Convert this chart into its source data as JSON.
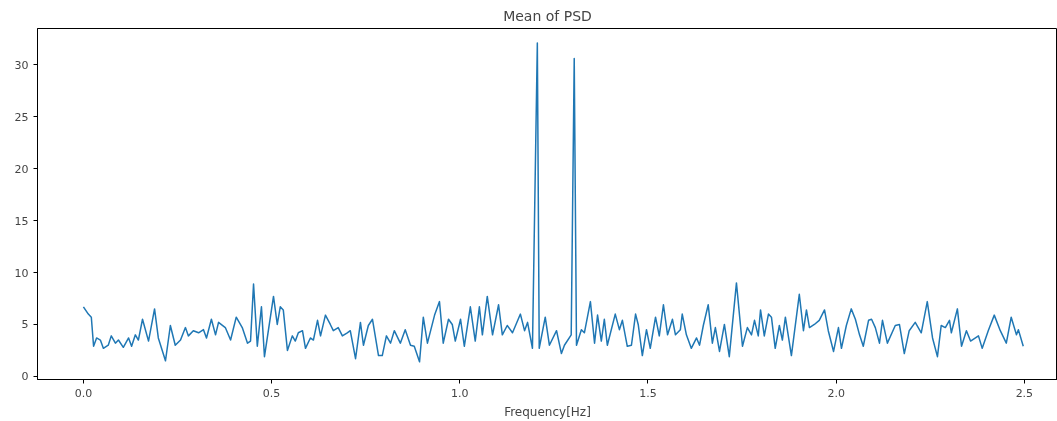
{
  "chart_data": {
    "type": "line",
    "title": "Mean of PSD",
    "xlabel": "Frequency[Hz]",
    "x": [
      0.0,
      0.013,
      0.021,
      0.027,
      0.035,
      0.045,
      0.053,
      0.066,
      0.074,
      0.085,
      0.093,
      0.106,
      0.12,
      0.128,
      0.138,
      0.146,
      0.157,
      0.173,
      0.189,
      0.199,
      0.218,
      0.231,
      0.244,
      0.258,
      0.271,
      0.279,
      0.292,
      0.306,
      0.319,
      0.327,
      0.34,
      0.351,
      0.359,
      0.377,
      0.391,
      0.406,
      0.422,
      0.436,
      0.444,
      0.452,
      0.462,
      0.473,
      0.481,
      0.505,
      0.515,
      0.523,
      0.531,
      0.542,
      0.555,
      0.563,
      0.571,
      0.582,
      0.59,
      0.603,
      0.611,
      0.622,
      0.63,
      0.643,
      0.656,
      0.664,
      0.677,
      0.688,
      0.701,
      0.709,
      0.723,
      0.736,
      0.744,
      0.757,
      0.768,
      0.784,
      0.794,
      0.805,
      0.816,
      0.826,
      0.842,
      0.855,
      0.869,
      0.879,
      0.893,
      0.903,
      0.914,
      0.933,
      0.946,
      0.956,
      0.97,
      0.98,
      0.988,
      1.002,
      1.012,
      1.028,
      1.041,
      1.052,
      1.06,
      1.073,
      1.087,
      1.103,
      1.113,
      1.126,
      1.14,
      1.161,
      1.172,
      1.18,
      1.193,
      1.206,
      1.211,
      1.227,
      1.238,
      1.257,
      1.27,
      1.278,
      1.296,
      1.304,
      1.31,
      1.323,
      1.331,
      1.347,
      1.358,
      1.366,
      1.376,
      1.384,
      1.392,
      1.413,
      1.424,
      1.432,
      1.445,
      1.456,
      1.467,
      1.474,
      1.485,
      1.496,
      1.506,
      1.52,
      1.53,
      1.541,
      1.552,
      1.565,
      1.573,
      1.586,
      1.591,
      1.602,
      1.615,
      1.629,
      1.637,
      1.647,
      1.66,
      1.671,
      1.679,
      1.69,
      1.703,
      1.716,
      1.735,
      1.751,
      1.764,
      1.775,
      1.783,
      1.793,
      1.799,
      1.809,
      1.82,
      1.828,
      1.838,
      1.849,
      1.857,
      1.865,
      1.881,
      1.902,
      1.913,
      1.921,
      1.929,
      1.942,
      1.955,
      1.969,
      1.979,
      1.993,
      2.006,
      2.014,
      2.027,
      2.04,
      2.051,
      2.062,
      2.072,
      2.086,
      2.094,
      2.104,
      2.115,
      2.123,
      2.136,
      2.157,
      2.168,
      2.181,
      2.194,
      2.21,
      2.226,
      2.242,
      2.256,
      2.269,
      2.279,
      2.29,
      2.301,
      2.306,
      2.322,
      2.333,
      2.346,
      2.357,
      2.378,
      2.388,
      2.404,
      2.42,
      2.436,
      2.452,
      2.465,
      2.479,
      2.484,
      2.497
    ],
    "values": [
      6.7,
      6.0,
      5.7,
      2.9,
      3.7,
      3.5,
      2.7,
      3.0,
      3.9,
      3.2,
      3.5,
      2.8,
      3.7,
      2.9,
      4.0,
      3.5,
      5.5,
      3.4,
      6.5,
      3.7,
      1.5,
      4.9,
      3.0,
      3.5,
      4.7,
      3.9,
      4.4,
      4.2,
      4.5,
      3.7,
      5.5,
      4.0,
      5.2,
      4.7,
      3.5,
      5.7,
      4.7,
      3.2,
      3.4,
      8.9,
      2.9,
      6.7,
      1.9,
      7.7,
      5.0,
      6.7,
      6.4,
      2.5,
      3.9,
      3.4,
      4.2,
      4.4,
      2.7,
      3.7,
      3.5,
      5.4,
      3.9,
      5.9,
      5.0,
      4.4,
      4.7,
      3.9,
      4.2,
      4.4,
      1.7,
      5.2,
      3.0,
      4.9,
      5.5,
      2.0,
      2.0,
      3.9,
      3.2,
      4.4,
      3.2,
      4.5,
      3.0,
      2.9,
      1.4,
      5.7,
      3.2,
      5.9,
      7.2,
      3.2,
      5.5,
      5.0,
      3.4,
      5.5,
      2.9,
      6.7,
      3.4,
      6.7,
      4.0,
      7.7,
      4.0,
      6.9,
      4.0,
      4.9,
      4.2,
      6.0,
      4.4,
      5.2,
      2.7,
      32.1,
      2.7,
      5.7,
      3.0,
      4.4,
      2.2,
      3.0,
      4.0,
      30.6,
      3.0,
      4.5,
      4.2,
      7.2,
      3.2,
      5.9,
      3.4,
      5.5,
      3.0,
      6.0,
      4.5,
      5.4,
      2.9,
      3.0,
      6.0,
      5.0,
      2.0,
      4.5,
      2.7,
      5.7,
      3.9,
      6.9,
      4.0,
      5.5,
      4.0,
      4.5,
      6.0,
      4.0,
      2.7,
      3.7,
      3.0,
      4.9,
      6.9,
      3.2,
      4.7,
      2.4,
      5.0,
      1.9,
      9.0,
      2.9,
      4.7,
      4.0,
      5.4,
      3.9,
      6.4,
      3.9,
      6.0,
      5.7,
      2.7,
      4.9,
      3.5,
      5.7,
      2.0,
      7.9,
      4.4,
      6.4,
      4.7,
      5.0,
      5.4,
      6.4,
      4.4,
      2.4,
      4.7,
      2.7,
      4.9,
      6.5,
      5.5,
      4.0,
      2.9,
      5.4,
      5.5,
      4.7,
      3.2,
      5.4,
      3.2,
      4.9,
      5.0,
      2.2,
      4.4,
      5.2,
      4.2,
      7.2,
      3.7,
      1.9,
      4.9,
      4.7,
      5.4,
      4.2,
      6.5,
      2.9,
      4.4,
      3.4,
      3.9,
      2.7,
      4.4,
      5.9,
      4.4,
      3.2,
      5.7,
      4.0,
      4.5,
      2.9
    ],
    "color": "#1f77b4",
    "xlim": [
      -0.122,
      2.588
    ],
    "ylim": [
      -0.3,
      33.5
    ],
    "xticks": [
      {
        "value": 0,
        "label": "0.0"
      },
      {
        "value": 0.5,
        "label": "0.5"
      },
      {
        "value": 1,
        "label": "1.0"
      },
      {
        "value": 1.5,
        "label": "1.5"
      },
      {
        "value": 2,
        "label": "2.0"
      },
      {
        "value": 2.5,
        "label": "2.5"
      }
    ],
    "yticks": [
      0,
      5,
      10,
      15,
      20,
      25,
      30
    ],
    "grid": false
  }
}
